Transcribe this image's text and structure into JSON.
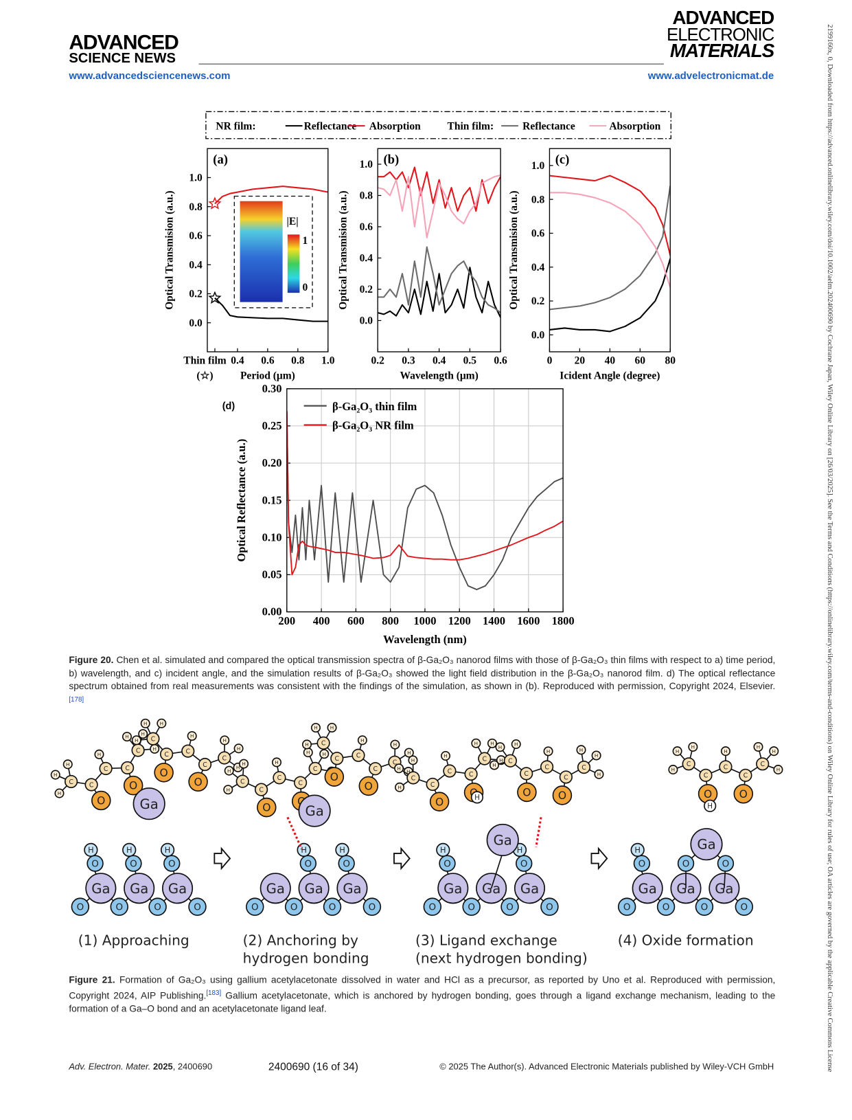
{
  "header": {
    "left_logo": [
      "ADVANCED",
      "SCIENCE NEWS"
    ],
    "left_url": "www.advancedsciencenews.com",
    "right_logo": [
      "ADVANCED",
      "ELECTRONIC",
      "MATERIALS"
    ],
    "right_url": "www.advelectronicmat.de"
  },
  "side_note": "2199160x, 0, Downloaded from https://advanced.onlinelibrary.wiley.com/doi/10.1002/aelm.202400690 by Cochrane Japan, Wiley Online Library on [26/03/2025]. See the Terms and Conditions (https://onlinelibrary.wiley.com/terms-and-conditions) on Wiley Online Library for rules of use; OA articles are governed by the applicable Creative Commons License",
  "figure20": {
    "legend_groups": [
      "NR film:",
      "Thin film:"
    ],
    "inset": {
      "label": "|E|",
      "max": "1",
      "min": "0"
    },
    "caption": {
      "label": "Figure 20.",
      "text": "Chen et al. simulated and compared the optical transmission spectra of β-Ga₂O₃ nanorod films with those of β-Ga₂O₃ thin films with respect to a) time period, b) wavelength, and c) incident angle, and the simulation results of β-Ga₂O₃ showed the light field distribution in the β-Ga₂O₃ nanorod film. d) The optical reflectance spectrum obtained from real measurements was consistent with the findings of the simulation, as shown in (b). Reproduced with permission, Copyright 2024, Elsevier.",
      "ref": "[178]"
    }
  },
  "chart_data": [
    {
      "type": "line",
      "label": "(a)",
      "xlabel": "Period (μm)",
      "ylabel": "Optical Transmision (a.u.)",
      "x_note": "(☆)",
      "x": [
        0.25,
        0.3,
        0.35,
        0.4,
        0.5,
        0.6,
        0.7,
        0.8,
        0.9,
        1.0
      ],
      "xlim": [
        0.2,
        1.0
      ],
      "ylim": [
        -0.2,
        1.2
      ],
      "xticks": [
        {
          "value": 0.25,
          "label": "Thin film"
        },
        0.4,
        0.6,
        0.8,
        {
          "value": 1.0,
          "label": "1.0"
        }
      ],
      "yticks": [
        {
          "value": 0,
          "label": "0.0"
        },
        0.2,
        0.4,
        0.6,
        0.8,
        {
          "value": 1.0,
          "label": "1.0"
        }
      ],
      "series": [
        {
          "name": "Reflectance",
          "color": "#000000",
          "values": [
            0.17,
            0.12,
            0.05,
            0.04,
            0.035,
            0.03,
            0.03,
            0.02,
            0.01,
            0.01
          ]
        },
        {
          "name": "Absorption",
          "color": "#e0161c",
          "values": [
            0.82,
            0.87,
            0.89,
            0.9,
            0.92,
            0.93,
            0.94,
            0.93,
            0.92,
            0.9
          ]
        },
        {
          "name": "Reflectance",
          "color": "#6b6b6b",
          "marker": "star",
          "marker_color": "#000000",
          "values": [
            0.17,
            null,
            null,
            null,
            null,
            null,
            null,
            null,
            null,
            null
          ]
        },
        {
          "name": "Absorption",
          "color": "#f4a3b9",
          "marker": "star",
          "marker_color": "#e0161c",
          "values": [
            0.82,
            null,
            null,
            null,
            null,
            null,
            null,
            null,
            null,
            null
          ]
        }
      ]
    },
    {
      "type": "line",
      "label": "(b)",
      "xlabel": "Wavelength (μm)",
      "ylabel": "Optical Transmision (a.u.)",
      "x": [
        0.2,
        0.22,
        0.24,
        0.26,
        0.28,
        0.3,
        0.32,
        0.34,
        0.36,
        0.38,
        0.4,
        0.42,
        0.44,
        0.46,
        0.48,
        0.5,
        0.52,
        0.54,
        0.56,
        0.58,
        0.6
      ],
      "xlim": [
        0.2,
        0.6
      ],
      "ylim": [
        -0.2,
        1.1
      ],
      "xticks": [
        0.2,
        0.3,
        0.4,
        0.5,
        0.6
      ],
      "yticks": [
        {
          "value": 0,
          "label": "0.0"
        },
        0.2,
        0.4,
        0.6,
        0.8,
        {
          "value": 1.0,
          "label": "1.0"
        }
      ],
      "series": [
        {
          "color": "#000000",
          "values": [
            0.05,
            0.04,
            0.06,
            0.03,
            0.1,
            0.05,
            0.2,
            0.04,
            0.25,
            0.06,
            0.3,
            0.05,
            0.1,
            0.2,
            0.08,
            0.34,
            0.15,
            0.05,
            0.25,
            0.1,
            0.02
          ]
        },
        {
          "color": "#e0161c",
          "values": [
            0.92,
            0.92,
            0.95,
            0.9,
            0.95,
            0.85,
            0.98,
            0.8,
            0.95,
            0.75,
            0.9,
            0.72,
            0.85,
            0.7,
            0.8,
            0.85,
            0.7,
            0.9,
            0.75,
            0.85,
            0.92
          ]
        },
        {
          "color": "#6b6b6b",
          "values": [
            0.15,
            0.15,
            0.2,
            0.15,
            0.3,
            0.1,
            0.38,
            0.15,
            0.47,
            0.3,
            0.1,
            0.2,
            0.3,
            0.35,
            0.38,
            0.3,
            0.25,
            0.15,
            0.1,
            0.08,
            0.05
          ]
        },
        {
          "color": "#f4a3b9",
          "values": [
            0.85,
            0.84,
            0.8,
            0.9,
            0.7,
            0.92,
            0.6,
            0.85,
            0.53,
            0.7,
            0.88,
            0.8,
            0.7,
            0.65,
            0.62,
            0.7,
            0.75,
            0.88,
            0.9,
            0.92,
            0.93
          ]
        }
      ]
    },
    {
      "type": "line",
      "label": "(c)",
      "xlabel": "Icident Angle (degree)",
      "ylabel": "Optical Transmision (a.u.)",
      "x": [
        0,
        10,
        20,
        30,
        40,
        50,
        60,
        70,
        75,
        80
      ],
      "xlim": [
        0,
        80
      ],
      "ylim": [
        -0.1,
        1.1
      ],
      "xticks": [
        0,
        20,
        40,
        60,
        80
      ],
      "yticks": [
        {
          "value": 0,
          "label": "0.0"
        },
        0.2,
        0.4,
        0.6,
        0.8,
        {
          "value": 1.0,
          "label": "1.0"
        }
      ],
      "series": [
        {
          "color": "#000000",
          "values": [
            0.03,
            0.04,
            0.03,
            0.03,
            0.02,
            0.05,
            0.1,
            0.2,
            0.3,
            0.45
          ]
        },
        {
          "color": "#e0161c",
          "values": [
            0.94,
            0.93,
            0.92,
            0.91,
            0.94,
            0.9,
            0.85,
            0.75,
            0.65,
            0.47
          ]
        },
        {
          "color": "#6b6b6b",
          "values": [
            0.15,
            0.16,
            0.17,
            0.19,
            0.22,
            0.27,
            0.35,
            0.48,
            0.58,
            0.88
          ]
        },
        {
          "color": "#f4a3b9",
          "values": [
            0.84,
            0.84,
            0.83,
            0.81,
            0.78,
            0.73,
            0.65,
            0.52,
            0.42,
            0.28
          ]
        }
      ]
    },
    {
      "type": "line",
      "label": "(d)",
      "xlabel": "Wavelength (nm)",
      "ylabel": "Optical Reflectance (a.u.)",
      "grid": true,
      "x": [
        200,
        210,
        230,
        250,
        270,
        290,
        310,
        330,
        360,
        400,
        440,
        480,
        530,
        580,
        630,
        700,
        760,
        800,
        850,
        900,
        950,
        1000,
        1050,
        1100,
        1150,
        1200,
        1250,
        1300,
        1350,
        1400,
        1450,
        1500,
        1550,
        1600,
        1650,
        1700,
        1750,
        1800
      ],
      "xlim": [
        200,
        1800
      ],
      "ylim": [
        0,
        0.3
      ],
      "xticks": [
        200,
        400,
        600,
        800,
        1000,
        1200,
        1400,
        1600,
        1800
      ],
      "yticks": [
        {
          "value": 0,
          "label": "0.00"
        },
        0.05,
        {
          "value": 0.1,
          "label": "0.10"
        },
        0.15,
        {
          "value": 0.2,
          "label": "0.20"
        },
        0.25,
        {
          "value": 0.3,
          "label": "0.30"
        }
      ],
      "series": [
        {
          "name": "β-Ga₂O₃ thin film",
          "color": "#4d4d4d",
          "values": [
            0.27,
            0.12,
            0.08,
            0.13,
            0.07,
            0.14,
            0.07,
            0.15,
            0.07,
            0.17,
            0.04,
            0.16,
            0.04,
            0.16,
            0.04,
            0.15,
            0.05,
            0.04,
            0.06,
            0.14,
            0.165,
            0.17,
            0.16,
            0.13,
            0.09,
            0.06,
            0.035,
            0.03,
            0.035,
            0.05,
            0.07,
            0.1,
            0.12,
            0.14,
            0.155,
            0.165,
            0.175,
            0.18
          ]
        },
        {
          "name": "β-Ga₂O₃ NR film",
          "color": "#e0161c",
          "values": [
            0.27,
            0.12,
            0.05,
            0.06,
            0.09,
            0.095,
            0.09,
            0.088,
            0.087,
            0.085,
            0.083,
            0.08,
            0.08,
            0.078,
            0.076,
            0.072,
            0.073,
            0.076,
            0.09,
            0.075,
            0.073,
            0.072,
            0.071,
            0.071,
            0.07,
            0.07,
            0.072,
            0.075,
            0.078,
            0.082,
            0.086,
            0.09,
            0.095,
            0.1,
            0.104,
            0.11,
            0.115,
            0.122
          ]
        }
      ]
    }
  ],
  "figure21": {
    "atoms": {
      "ga": "Ga",
      "o": "O",
      "h": "H",
      "c": "C"
    },
    "steps": [
      [
        "(1) Approaching"
      ],
      [
        "(2) Anchoring by",
        "hydrogen bonding"
      ],
      [
        "(3) Ligand exchange",
        "(next hydrogen bonding)"
      ],
      [
        "(4) Oxide formation"
      ]
    ],
    "caption": {
      "label": "Figure 21.",
      "text": "Formation of Ga₂O₃ using gallium acetylacetonate dissolved in water and HCl as a precursor, as reported by Uno et al. Reproduced with permission, Copyright 2024, AIP Publishing.",
      "ref": "[183]",
      "text_after": "Gallium acetylacetonate, which is anchored by hydrogen bonding, goes through a ligand exchange mechanism, leading to the formation of a Ga–O bond and an acetylacetonate ligand leaf."
    }
  },
  "footer": {
    "journal": "Adv. Electron. Mater.",
    "year": "2025",
    "article": ", 2400690",
    "page": "2400690 (16 of 34)",
    "copyright": "© 2025 The Author(s). Advanced Electronic Materials published by Wiley-VCH GmbH"
  }
}
